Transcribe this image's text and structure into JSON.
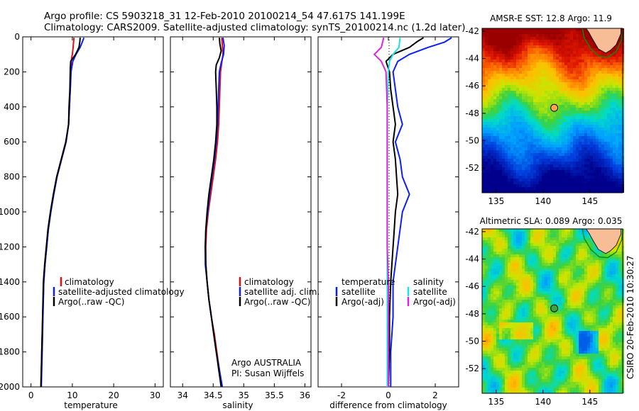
{
  "figure": {
    "title_line1": "Argo profile: CS 5903218_31 12-Feb-2010 20100214_54 47.617S 141.199E",
    "title_line2": "Climatology: CARS2009. Satellite-adjusted climatology: synTS_20100214.nc (1.2d later)",
    "credit": "CSIRO 20-Feb-2010 10:30:27",
    "agency_line1": "Argo AUSTRALIA",
    "agency_line2": "PI: Susan Wijffels"
  },
  "colors": {
    "climatology": "#e01010",
    "satellite": "#0a1eff",
    "argo": "#000000",
    "sal_satellite": "#17e6e6",
    "sal_argo": "#e020e0",
    "land": "#f6bd96",
    "coast": "#0a8a0a"
  },
  "chart_data": [
    {
      "type": "line",
      "xlabel": "temperature",
      "ylim": [
        2000,
        0
      ],
      "yticks": [
        0,
        200,
        400,
        600,
        800,
        1000,
        1200,
        1400,
        1600,
        1800,
        2000
      ],
      "xlim": [
        -2,
        32
      ],
      "xticks": [
        0,
        10,
        20,
        30
      ],
      "legend": [
        "climatology",
        "satellite-adjusted climatology",
        "Argo(..raw -QC)"
      ],
      "series": [
        {
          "name": "climatology",
          "depth": [
            5,
            30,
            60,
            100,
            140,
            200,
            300,
            400,
            500,
            600,
            700,
            800,
            900,
            1000,
            1100,
            1200,
            1300,
            1400,
            1600,
            1800,
            2000
          ],
          "values": [
            10.4,
            10.3,
            10.2,
            10.0,
            9.7,
            9.6,
            9.5,
            9.3,
            9.1,
            8.5,
            7.4,
            6.3,
            5.5,
            4.8,
            4.2,
            3.8,
            3.4,
            3.1,
            2.8,
            2.6,
            2.4
          ]
        },
        {
          "name": "satellite-adjusted climatology",
          "depth": [
            5,
            30,
            60,
            100,
            140,
            200,
            300,
            400,
            500,
            600,
            700,
            800,
            900,
            1000,
            1100,
            1200,
            1300,
            1400,
            1600,
            1800,
            2000
          ],
          "values": [
            12.8,
            12.4,
            11.9,
            10.9,
            10.1,
            9.7,
            9.5,
            9.3,
            9.1,
            8.5,
            7.4,
            6.3,
            5.5,
            4.8,
            4.2,
            3.8,
            3.4,
            3.1,
            2.9,
            2.7,
            2.5
          ]
        },
        {
          "name": "Argo(..raw -QC)",
          "depth": [
            5,
            30,
            60,
            100,
            140,
            180,
            300,
            400,
            500,
            600,
            700,
            800,
            900,
            1000,
            1100,
            1200,
            1300,
            1400,
            1600,
            1800,
            2000
          ],
          "values": [
            11.9,
            11.8,
            11.6,
            10.8,
            9.6,
            9.5,
            9.4,
            9.2,
            9.1,
            8.4,
            7.3,
            6.2,
            5.4,
            4.7,
            4.1,
            3.7,
            3.3,
            3.0,
            2.8,
            2.6,
            2.4
          ]
        }
      ]
    },
    {
      "type": "line",
      "xlabel": "salinity",
      "ylim": [
        2000,
        0
      ],
      "xlim": [
        33.8,
        36.1
      ],
      "xticks": [
        34,
        34.5,
        35,
        35.5,
        36
      ],
      "legend": [
        "climatology",
        "satellite adj. clim.",
        "Argo(..raw -QC)"
      ],
      "series": [
        {
          "name": "climatology",
          "depth": [
            5,
            50,
            100,
            150,
            200,
            300,
            400,
            500,
            600,
            700,
            800,
            900,
            1000,
            1100,
            1200,
            1300,
            1400,
            1500,
            1600,
            1700,
            1800,
            1900,
            2000
          ],
          "values": [
            34.64,
            34.65,
            34.66,
            34.64,
            34.62,
            34.61,
            34.6,
            34.59,
            34.57,
            34.54,
            34.5,
            34.46,
            34.42,
            34.39,
            34.38,
            34.38,
            34.4,
            34.43,
            34.47,
            34.52,
            34.56,
            34.6,
            34.64
          ]
        },
        {
          "name": "satellite adj. clim.",
          "depth": [
            5,
            50,
            100,
            150,
            200,
            300,
            400,
            500,
            600,
            700,
            800,
            900,
            1000,
            1100,
            1200,
            1300,
            1400,
            1500,
            1600,
            1700,
            1800,
            1900,
            2000
          ],
          "values": [
            34.66,
            34.68,
            34.67,
            34.63,
            34.6,
            34.59,
            34.58,
            34.57,
            34.55,
            34.52,
            34.48,
            34.44,
            34.41,
            34.38,
            34.37,
            34.37,
            34.4,
            34.43,
            34.47,
            34.51,
            34.55,
            34.6,
            34.65
          ]
        },
        {
          "name": "Argo(..raw -QC)",
          "depth": [
            5,
            40,
            80,
            120,
            160,
            200,
            300,
            400,
            500,
            600,
            700,
            800,
            900,
            1000,
            1100,
            1200,
            1300,
            1400,
            1500,
            1600,
            1700,
            1800,
            1900,
            2000
          ],
          "values": [
            34.6,
            34.61,
            34.63,
            34.6,
            34.55,
            34.54,
            34.55,
            34.56,
            34.56,
            34.54,
            34.51,
            34.47,
            34.43,
            34.4,
            34.38,
            34.37,
            34.38,
            34.4,
            34.43,
            34.47,
            34.51,
            34.55,
            34.59,
            34.63
          ]
        }
      ]
    },
    {
      "type": "line",
      "xlabel": "difference from climatology",
      "ylim": [
        2000,
        0
      ],
      "xlim": [
        -3,
        3
      ],
      "xticks": [
        -2,
        0,
        2
      ],
      "legend": [
        "temperature",
        "satellite",
        "Argo(-adj)",
        "salinity",
        "satellite",
        "Argo(-adj)"
      ],
      "series": [
        {
          "name": "temperature satellite",
          "depth": [
            5,
            30,
            60,
            100,
            140,
            200,
            300,
            400,
            500,
            600,
            700,
            800,
            900,
            1000,
            1100,
            1200,
            1400,
            1600,
            1800,
            2000
          ],
          "values": [
            2.7,
            2.4,
            1.7,
            0.9,
            0.4,
            0.2,
            0.3,
            0.4,
            0.6,
            0.3,
            0.5,
            0.6,
            0.9,
            0.6,
            0.5,
            0.4,
            0.2,
            0.2,
            0.1,
            0.1
          ]
        },
        {
          "name": "temperature Argo(-adj)",
          "depth": [
            5,
            30,
            60,
            100,
            140,
            200,
            300,
            400,
            500,
            600,
            700,
            800,
            900,
            1000,
            1100,
            1200,
            1400,
            1600,
            1800,
            2000
          ],
          "values": [
            1.5,
            1.2,
            0.9,
            0.2,
            -0.1,
            0.05,
            0.1,
            0.2,
            0.3,
            0.2,
            0.3,
            0.35,
            0.4,
            0.3,
            0.25,
            0.2,
            0.1,
            0.05,
            0.05,
            0.0
          ]
        },
        {
          "name": "salinity satellite",
          "depth": [
            5,
            60,
            100,
            140,
            200,
            400,
            600,
            800,
            1000,
            1200,
            1400,
            1600,
            1800,
            2000
          ],
          "values": [
            0.5,
            0.45,
            0.2,
            0.05,
            0.0,
            -0.05,
            -0.05,
            -0.05,
            -0.05,
            -0.05,
            -0.05,
            -0.05,
            -0.05,
            -0.05
          ]
        },
        {
          "name": "salinity Argo(-adj)",
          "depth": [
            5,
            60,
            100,
            140,
            200,
            400,
            600,
            800,
            1000,
            1200,
            1400,
            1600,
            1800,
            2000
          ],
          "values": [
            -0.2,
            -0.3,
            -0.6,
            -0.3,
            -0.1,
            -0.05,
            -0.05,
            -0.05,
            -0.05,
            -0.05,
            0.0,
            0.0,
            0.0,
            0.0
          ]
        }
      ]
    },
    {
      "type": "heatmap",
      "title": "AMSR-E SST: 12.8 Argo: 11.9",
      "xlim": [
        133.5,
        148.5
      ],
      "ylim": [
        -53.8,
        -41.8
      ],
      "xticks": [
        135,
        140,
        145
      ],
      "yticks": [
        -42,
        -44,
        -46,
        -48,
        -50,
        -52
      ],
      "marker": {
        "lon": 141.2,
        "lat": -47.6
      },
      "field": "sst"
    },
    {
      "type": "heatmap",
      "title": "Altimetric SLA: 0.089 Argo: 0.035",
      "xlim": [
        133.5,
        148.5
      ],
      "ylim": [
        -53.8,
        -41.8
      ],
      "xticks": [
        135,
        140,
        145
      ],
      "yticks": [
        -42,
        -44,
        -46,
        -48,
        -50,
        -52
      ],
      "marker": {
        "lon": 141.2,
        "lat": -47.6
      },
      "field": "sla"
    }
  ]
}
